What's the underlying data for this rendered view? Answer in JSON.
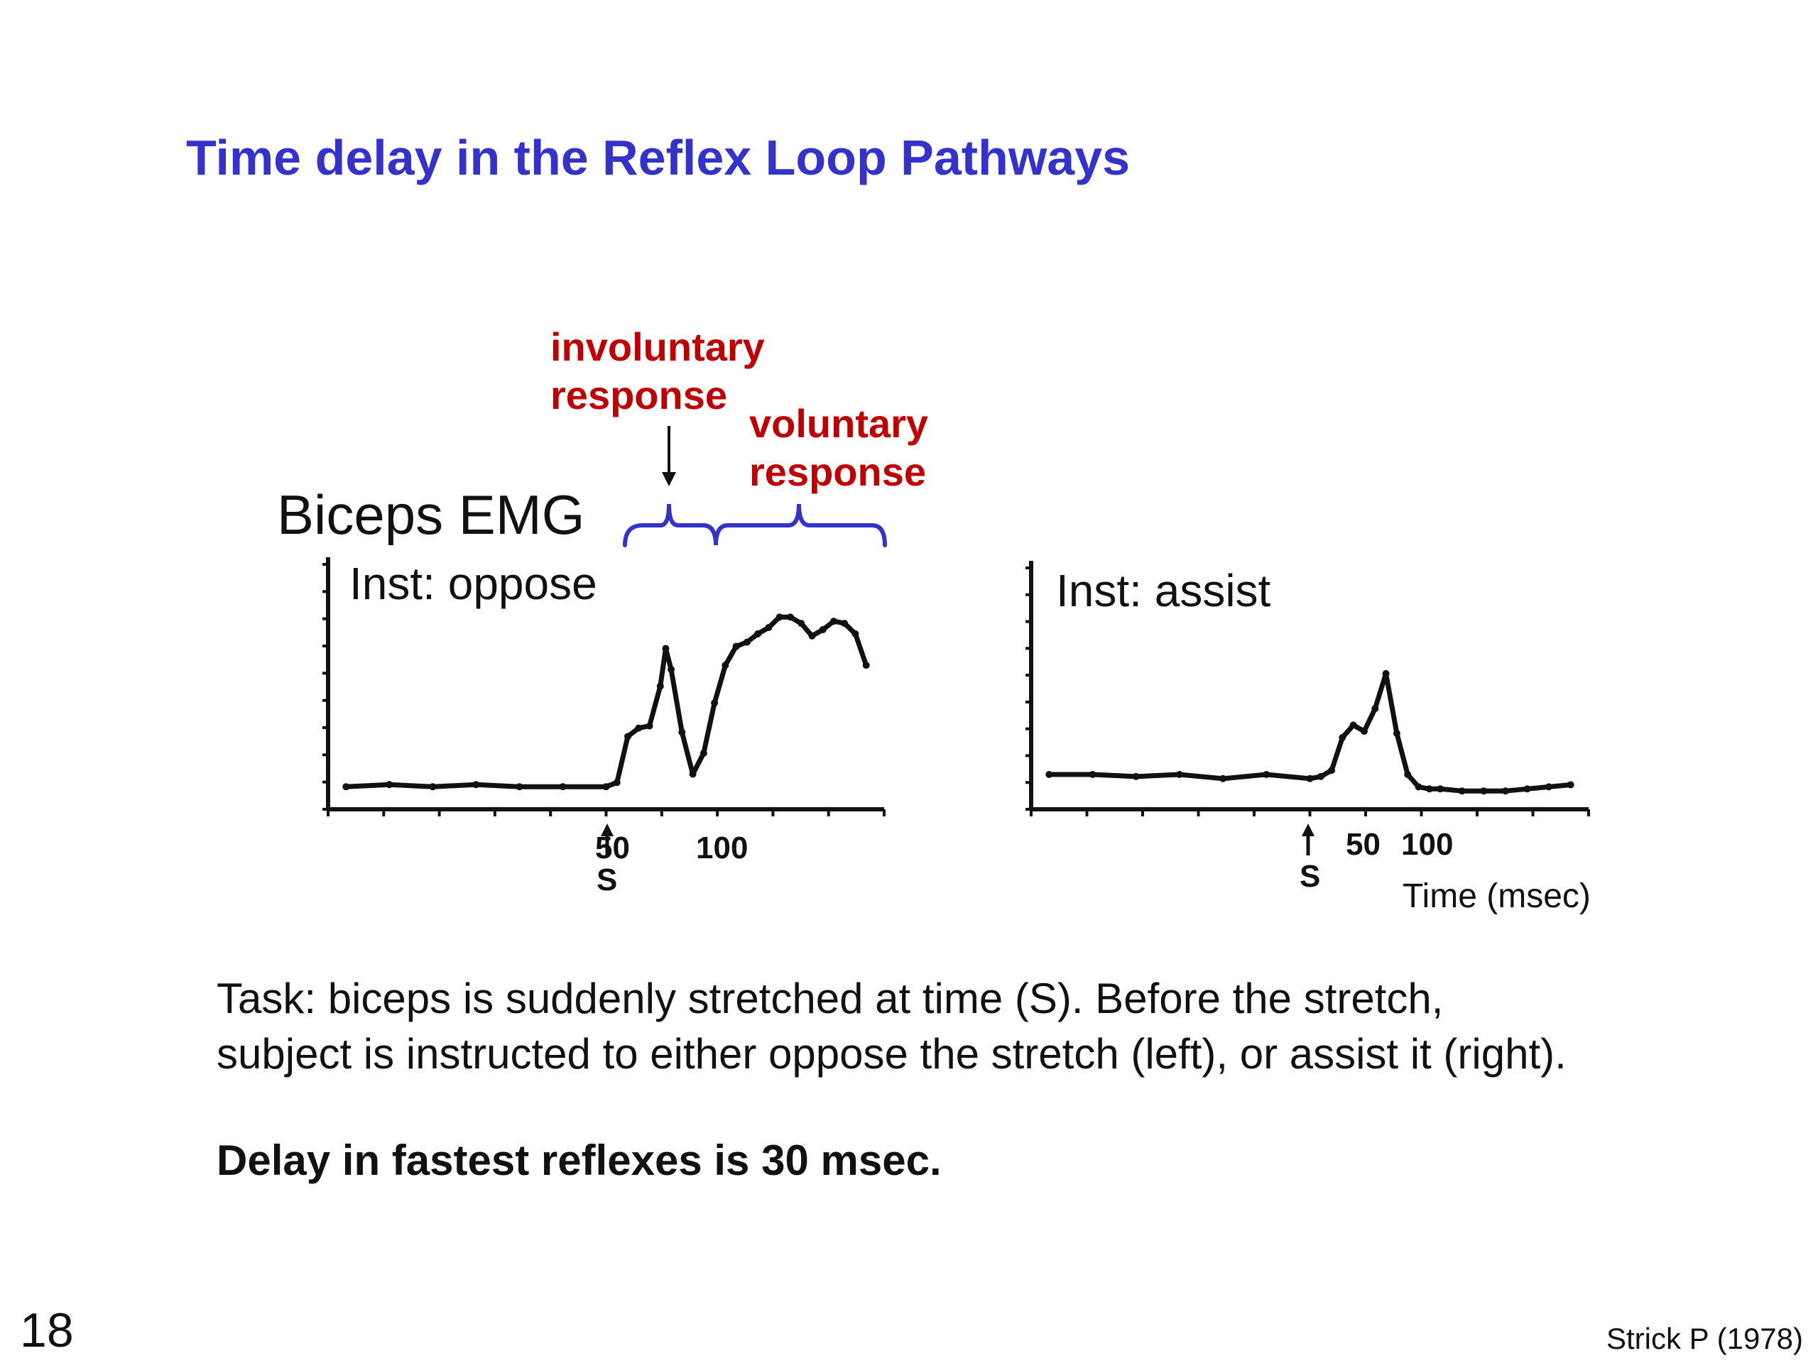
{
  "slide": {
    "title": "Time delay in the Reflex Loop Pathways",
    "page_number": "18",
    "citation": "Strick P (1978)",
    "colors": {
      "title": "#3333cc",
      "annotation": "#c00000",
      "brace": "#3333cc",
      "trace": "#111111"
    }
  },
  "annotations": {
    "involuntary_line1": "involuntary",
    "involuntary_line2": "response",
    "voluntary_line1": "voluntary",
    "voluntary_line2": "response",
    "emg_label": "Biceps EMG"
  },
  "text": {
    "task_line1": "Task:  biceps is suddenly stretched at time (S).  Before the stretch,",
    "task_line2": "subject is instructed to either oppose the stretch (left), or assist it (right).",
    "delay": "Delay in fastest reflexes is 30 msec."
  },
  "chart_data": [
    {
      "type": "line",
      "title": "Inst: oppose",
      "xlabel": "",
      "ylabel": "",
      "stimulus_label": "S",
      "x_ticks": [
        "50",
        "100"
      ],
      "x": [
        -240,
        -200,
        -160,
        -120,
        -80,
        -40,
        0,
        10,
        20,
        30,
        40,
        50,
        55,
        60,
        70,
        80,
        90,
        100,
        110,
        120,
        130,
        140,
        150,
        160,
        170,
        180,
        190,
        200,
        210,
        220,
        230,
        240
      ],
      "y": [
        0.04,
        0.05,
        0.04,
        0.05,
        0.04,
        0.04,
        0.04,
        0.06,
        0.28,
        0.32,
        0.33,
        0.52,
        0.7,
        0.6,
        0.3,
        0.1,
        0.2,
        0.44,
        0.62,
        0.71,
        0.73,
        0.77,
        0.8,
        0.85,
        0.85,
        0.82,
        0.76,
        0.79,
        0.83,
        0.82,
        0.77,
        0.62
      ],
      "xlim": [
        -250,
        250
      ],
      "ylim": [
        0,
        1
      ]
    },
    {
      "type": "line",
      "title": "Inst: assist",
      "xlabel": "Time (msec)",
      "ylabel": "",
      "stimulus_label": "S",
      "x_ticks": [
        "50",
        "100"
      ],
      "x": [
        -240,
        -200,
        -160,
        -120,
        -80,
        -40,
        0,
        10,
        20,
        30,
        40,
        50,
        60,
        70,
        80,
        90,
        100,
        110,
        120,
        140,
        160,
        180,
        200,
        220,
        240
      ],
      "y": [
        0.1,
        0.1,
        0.09,
        0.1,
        0.08,
        0.1,
        0.08,
        0.09,
        0.12,
        0.28,
        0.34,
        0.31,
        0.42,
        0.59,
        0.3,
        0.1,
        0.04,
        0.03,
        0.03,
        0.02,
        0.02,
        0.02,
        0.03,
        0.04,
        0.05
      ],
      "xlim": [
        -250,
        250
      ],
      "ylim": [
        0,
        1
      ]
    }
  ]
}
